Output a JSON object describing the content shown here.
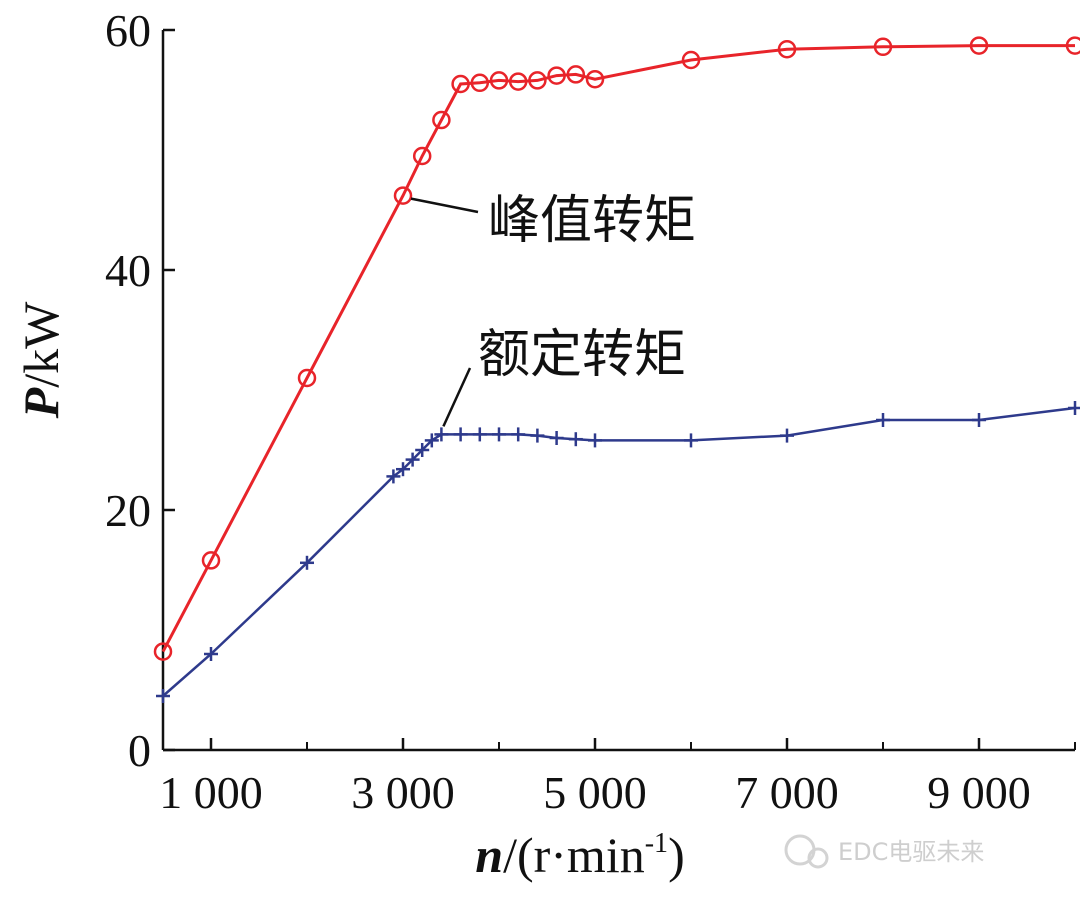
{
  "chart_data": {
    "type": "line",
    "xlabel_var": "n",
    "xlabel_unit": "/(r·min",
    "xlabel_sup": "-1",
    "xlabel_close": ")",
    "ylabel_var": "P",
    "ylabel_unit": "/kW",
    "xlim": [
      500,
      10000
    ],
    "ylim": [
      0,
      60
    ],
    "xticks": [
      1000,
      3000,
      5000,
      7000,
      9000
    ],
    "xtick_labels": [
      "1 000",
      "3 000",
      "5 000",
      "7 000",
      "9 000"
    ],
    "yticks": [
      0,
      20,
      40,
      60
    ],
    "ytick_labels": [
      "0",
      "20",
      "40",
      "60"
    ],
    "series": [
      {
        "name": "峰值转矩",
        "color": "#e8242a",
        "marker": "circle",
        "x": [
          500,
          1000,
          2000,
          3000,
          3200,
          3400,
          3600,
          3800,
          4000,
          4200,
          4400,
          4600,
          4800,
          5000,
          6000,
          7000,
          8000,
          9000,
          10000
        ],
        "y": [
          8.2,
          15.8,
          31.0,
          46.2,
          49.5,
          52.5,
          55.5,
          55.6,
          55.8,
          55.7,
          55.8,
          56.2,
          56.3,
          55.9,
          57.5,
          58.4,
          58.6,
          58.7,
          58.7
        ]
      },
      {
        "name": "额定转矩",
        "color": "#2e3a8c",
        "marker": "plus",
        "x": [
          500,
          1000,
          2000,
          2900,
          3000,
          3100,
          3200,
          3300,
          3400,
          3600,
          3800,
          4000,
          4200,
          4400,
          4600,
          4800,
          5000,
          6000,
          7000,
          8000,
          9000,
          10000
        ],
        "y": [
          4.5,
          8.0,
          15.6,
          22.8,
          23.4,
          24.2,
          25.0,
          25.8,
          26.3,
          26.3,
          26.3,
          26.3,
          26.3,
          26.2,
          26.0,
          25.9,
          25.8,
          25.8,
          26.2,
          27.5,
          27.5,
          28.5
        ]
      }
    ],
    "annotations": [
      {
        "text": "峰值转矩",
        "series": 0,
        "point_x": 3000,
        "point_y": 46.2
      },
      {
        "text": "额定转矩",
        "series": 1,
        "point_x": 3400,
        "point_y": 26.3
      }
    ],
    "grid": false,
    "legend": "none"
  },
  "watermark": {
    "text": "EDC电驱未来"
  }
}
